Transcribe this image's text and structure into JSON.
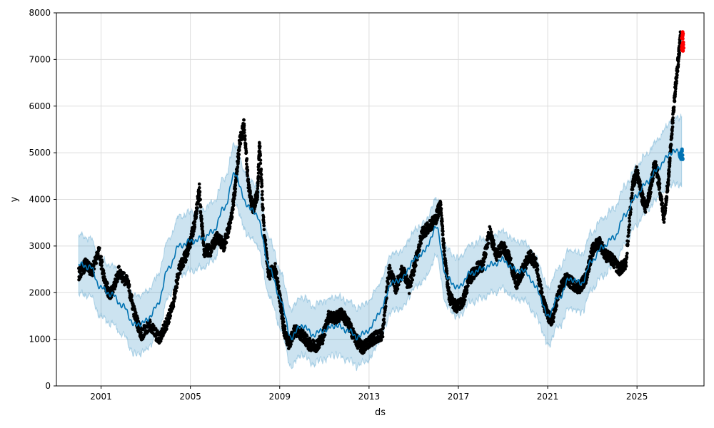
{
  "chart_data": {
    "type": "scatter",
    "xlabel": "ds",
    "ylabel": "y",
    "xlim": [
      1999.0,
      2028.0
    ],
    "ylim": [
      0,
      8000
    ],
    "grid": true,
    "x_ticks": [
      {
        "value": 2001,
        "label": "2001"
      },
      {
        "value": 2005,
        "label": "2005"
      },
      {
        "value": 2009,
        "label": "2009"
      },
      {
        "value": 2013,
        "label": "2013"
      },
      {
        "value": 2017,
        "label": "2017"
      },
      {
        "value": 2021,
        "label": "2021"
      },
      {
        "value": 2025,
        "label": "2025"
      }
    ],
    "y_ticks": [
      {
        "value": 0,
        "label": "0"
      },
      {
        "value": 1000,
        "label": "1000"
      },
      {
        "value": 2000,
        "label": "2000"
      },
      {
        "value": 3000,
        "label": "3000"
      },
      {
        "value": 4000,
        "label": "4000"
      },
      {
        "value": 5000,
        "label": "5000"
      },
      {
        "value": 6000,
        "label": "6000"
      },
      {
        "value": 7000,
        "label": "7000"
      },
      {
        "value": 8000,
        "label": "8000"
      }
    ],
    "colors": {
      "observed": "#000000",
      "highlight": "#ff0000",
      "trend": "#0072b2",
      "band": "#0072b2",
      "grid": "#dddddd"
    },
    "band_half_width": 620,
    "trend": [
      [
        2000.0,
        2600
      ],
      [
        2000.5,
        2550
      ],
      [
        2001.0,
        2100
      ],
      [
        2001.5,
        1950
      ],
      [
        2002.0,
        1700
      ],
      [
        2002.5,
        1300
      ],
      [
        2003.0,
        1380
      ],
      [
        2003.5,
        1700
      ],
      [
        2004.0,
        2500
      ],
      [
        2004.5,
        3000
      ],
      [
        2005.0,
        3100
      ],
      [
        2005.5,
        3150
      ],
      [
        2006.0,
        3300
      ],
      [
        2006.5,
        3800
      ],
      [
        2007.0,
        4550
      ],
      [
        2007.5,
        3900
      ],
      [
        2008.0,
        3650
      ],
      [
        2008.5,
        2600
      ],
      [
        2009.0,
        1900
      ],
      [
        2009.5,
        1050
      ],
      [
        2010.0,
        1300
      ],
      [
        2010.5,
        1100
      ],
      [
        2011.0,
        1200
      ],
      [
        2011.5,
        1300
      ],
      [
        2012.0,
        1200
      ],
      [
        2012.5,
        1050
      ],
      [
        2013.0,
        1200
      ],
      [
        2013.5,
        1600
      ],
      [
        2014.0,
        2200
      ],
      [
        2014.5,
        2300
      ],
      [
        2015.0,
        2700
      ],
      [
        2015.5,
        2900
      ],
      [
        2016.0,
        3400
      ],
      [
        2016.5,
        2300
      ],
      [
        2017.0,
        2100
      ],
      [
        2017.5,
        2400
      ],
      [
        2018.0,
        2500
      ],
      [
        2018.5,
        2600
      ],
      [
        2019.0,
        2700
      ],
      [
        2019.5,
        2500
      ],
      [
        2020.0,
        2450
      ],
      [
        2020.5,
        2100
      ],
      [
        2021.0,
        1500
      ],
      [
        2021.5,
        1900
      ],
      [
        2022.0,
        2300
      ],
      [
        2022.5,
        2200
      ],
      [
        2023.0,
        2700
      ],
      [
        2023.5,
        3000
      ],
      [
        2024.0,
        3200
      ],
      [
        2024.5,
        3700
      ],
      [
        2025.0,
        4100
      ],
      [
        2025.5,
        4400
      ],
      [
        2026.0,
        4700
      ],
      [
        2026.5,
        5000
      ],
      [
        2027.0,
        5050
      ]
    ],
    "forecast_points": {
      "x_range": [
        2026.9,
        2027.05
      ],
      "y_range": [
        4850,
        5100
      ],
      "count": 20
    },
    "observed_series": [
      [
        2000.0,
        2400
      ],
      [
        2000.3,
        2600
      ],
      [
        2000.6,
        2450
      ],
      [
        2000.9,
        2900
      ],
      [
        2001.2,
        2200
      ],
      [
        2001.4,
        1900
      ],
      [
        2001.8,
        2450
      ],
      [
        2002.2,
        2200
      ],
      [
        2002.5,
        1550
      ],
      [
        2002.8,
        1100
      ],
      [
        2003.2,
        1300
      ],
      [
        2003.6,
        1000
      ],
      [
        2003.9,
        1300
      ],
      [
        2004.2,
        1700
      ],
      [
        2004.5,
        2500
      ],
      [
        2004.8,
        2800
      ],
      [
        2005.0,
        3100
      ],
      [
        2005.2,
        3500
      ],
      [
        2005.4,
        4200
      ],
      [
        2005.6,
        2900
      ],
      [
        2005.9,
        2900
      ],
      [
        2006.2,
        3200
      ],
      [
        2006.5,
        3000
      ],
      [
        2006.8,
        3500
      ],
      [
        2007.0,
        4200
      ],
      [
        2007.2,
        5200
      ],
      [
        2007.4,
        5600
      ],
      [
        2007.6,
        4300
      ],
      [
        2007.8,
        3800
      ],
      [
        2008.0,
        4100
      ],
      [
        2008.1,
        5200
      ],
      [
        2008.3,
        3300
      ],
      [
        2008.5,
        2400
      ],
      [
        2008.8,
        2500
      ],
      [
        2009.0,
        1900
      ],
      [
        2009.2,
        1200
      ],
      [
        2009.4,
        900
      ],
      [
        2009.7,
        1200
      ],
      [
        2010.0,
        1100
      ],
      [
        2010.3,
        900
      ],
      [
        2010.6,
        850
      ],
      [
        2010.9,
        1000
      ],
      [
        2011.2,
        1500
      ],
      [
        2011.5,
        1450
      ],
      [
        2011.8,
        1550
      ],
      [
        2012.1,
        1300
      ],
      [
        2012.4,
        1000
      ],
      [
        2012.7,
        800
      ],
      [
        2013.0,
        950
      ],
      [
        2013.3,
        1050
      ],
      [
        2013.6,
        1100
      ],
      [
        2013.9,
        2500
      ],
      [
        2014.2,
        2100
      ],
      [
        2014.5,
        2500
      ],
      [
        2014.8,
        2100
      ],
      [
        2015.1,
        2700
      ],
      [
        2015.4,
        3300
      ],
      [
        2015.7,
        3400
      ],
      [
        2016.0,
        3600
      ],
      [
        2016.2,
        3900
      ],
      [
        2016.4,
        2700
      ],
      [
        2016.6,
        1900
      ],
      [
        2016.9,
        1700
      ],
      [
        2017.2,
        1800
      ],
      [
        2017.5,
        2300
      ],
      [
        2017.8,
        2500
      ],
      [
        2018.1,
        2600
      ],
      [
        2018.4,
        3300
      ],
      [
        2018.7,
        2800
      ],
      [
        2019.0,
        3000
      ],
      [
        2019.3,
        2700
      ],
      [
        2019.6,
        2200
      ],
      [
        2019.9,
        2500
      ],
      [
        2020.2,
        2800
      ],
      [
        2020.5,
        2600
      ],
      [
        2020.8,
        1800
      ],
      [
        2021.0,
        1500
      ],
      [
        2021.2,
        1400
      ],
      [
        2021.5,
        2000
      ],
      [
        2021.8,
        2300
      ],
      [
        2022.1,
        2200
      ],
      [
        2022.4,
        2100
      ],
      [
        2022.7,
        2300
      ],
      [
        2023.0,
        2900
      ],
      [
        2023.3,
        3100
      ],
      [
        2023.6,
        2800
      ],
      [
        2023.9,
        2700
      ],
      [
        2024.2,
        2500
      ],
      [
        2024.5,
        2600
      ],
      [
        2024.8,
        4300
      ],
      [
        2025.0,
        4600
      ],
      [
        2025.2,
        4100
      ],
      [
        2025.4,
        3800
      ],
      [
        2025.6,
        4200
      ],
      [
        2025.8,
        4800
      ],
      [
        2026.0,
        4300
      ],
      [
        2026.2,
        3600
      ],
      [
        2026.4,
        4400
      ],
      [
        2026.55,
        5400
      ],
      [
        2026.7,
        6300
      ],
      [
        2026.85,
        7000
      ],
      [
        2026.95,
        7500
      ]
    ],
    "highlight_points": {
      "x_range": [
        2027.0,
        2027.1
      ],
      "y_range": [
        7150,
        7600
      ],
      "count": 25
    }
  }
}
